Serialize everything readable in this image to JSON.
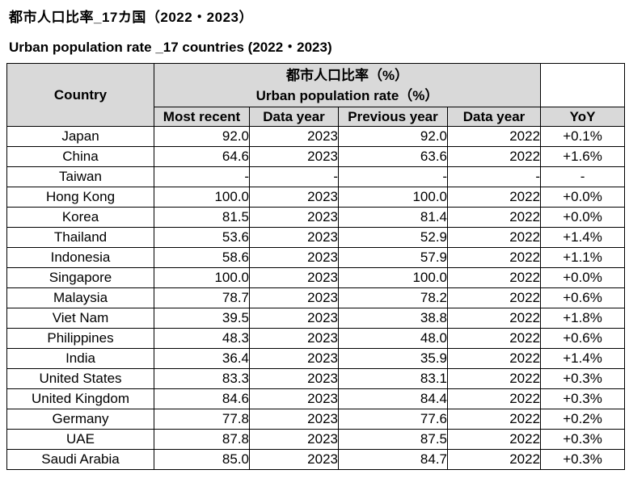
{
  "titles": {
    "japanese": "都市人口比率_17カ国（2022・2023）",
    "english": "Urban population rate _17 countries (2022・2023)"
  },
  "table": {
    "corner_header": "Country",
    "group_header_ja": "都市人口比率（%）",
    "group_header_en": "Urban population rate（%）",
    "sub_headers": [
      "Most recent",
      "Data year",
      "Previous year",
      "Data year",
      "YoY"
    ]
  },
  "colors": {
    "header_bg": "#d9d9d9",
    "border": "#000000",
    "text": "#000000",
    "background": "#ffffff"
  },
  "chart_data": {
    "type": "table",
    "title": "都市人口比率_17カ国（2022・2023）",
    "subtitle": "Urban population rate _17 countries (2022・2023)",
    "column_group_label": "都市人口比率（%） / Urban population rate（%）",
    "columns": [
      "Country",
      "Most recent",
      "Data year",
      "Previous year",
      "Data year",
      "YoY"
    ],
    "rows": [
      [
        "Japan",
        "92.0",
        "2023",
        "92.0",
        "2022",
        "+0.1%"
      ],
      [
        "China",
        "64.6",
        "2023",
        "63.6",
        "2022",
        "+1.6%"
      ],
      [
        "Taiwan",
        "-",
        "-",
        "-",
        "-",
        "-"
      ],
      [
        "Hong Kong",
        "100.0",
        "2023",
        "100.0",
        "2022",
        "+0.0%"
      ],
      [
        "Korea",
        "81.5",
        "2023",
        "81.4",
        "2022",
        "+0.0%"
      ],
      [
        "Thailand",
        "53.6",
        "2023",
        "52.9",
        "2022",
        "+1.4%"
      ],
      [
        "Indonesia",
        "58.6",
        "2023",
        "57.9",
        "2022",
        "+1.1%"
      ],
      [
        "Singapore",
        "100.0",
        "2023",
        "100.0",
        "2022",
        "+0.0%"
      ],
      [
        "Malaysia",
        "78.7",
        "2023",
        "78.2",
        "2022",
        "+0.6%"
      ],
      [
        "Viet Nam",
        "39.5",
        "2023",
        "38.8",
        "2022",
        "+1.8%"
      ],
      [
        "Philippines",
        "48.3",
        "2023",
        "48.0",
        "2022",
        "+0.6%"
      ],
      [
        "India",
        "36.4",
        "2023",
        "35.9",
        "2022",
        "+1.4%"
      ],
      [
        "United States",
        "83.3",
        "2023",
        "83.1",
        "2022",
        "+0.3%"
      ],
      [
        "United Kingdom",
        "84.6",
        "2023",
        "84.4",
        "2022",
        "+0.3%"
      ],
      [
        "Germany",
        "77.8",
        "2023",
        "77.6",
        "2022",
        "+0.2%"
      ],
      [
        "UAE",
        "87.8",
        "2023",
        "87.5",
        "2022",
        "+0.3%"
      ],
      [
        "Saudi Arabia",
        "85.0",
        "2023",
        "84.7",
        "2022",
        "+0.3%"
      ]
    ]
  }
}
